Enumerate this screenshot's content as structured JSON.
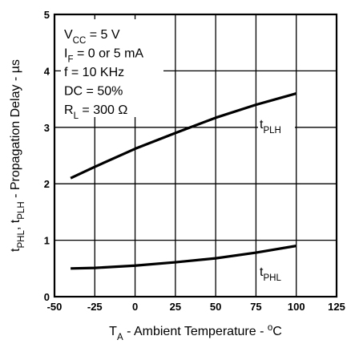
{
  "chart_data": {
    "type": "line",
    "xlabel": [
      [
        "T",
        "normal"
      ],
      [
        "A",
        "sub"
      ],
      [
        " - Ambient Temperature - ",
        "normal"
      ],
      [
        "o",
        "sup"
      ],
      [
        "C",
        "normal"
      ]
    ],
    "ylabel": [
      [
        "t",
        "normal"
      ],
      [
        "PHL",
        "sub"
      ],
      [
        ", t",
        "normal"
      ],
      [
        "PLH",
        "sub"
      ],
      [
        " - Propagation Delay - µs",
        "normal"
      ]
    ],
    "annotations": [
      [
        [
          "V",
          "normal"
        ],
        [
          "CC",
          "sub"
        ],
        [
          " = 5 V",
          "normal"
        ]
      ],
      [
        [
          "I",
          "normal"
        ],
        [
          "F",
          "sub"
        ],
        [
          " = 0 or 5 mA",
          "normal"
        ]
      ],
      [
        [
          "f = 10 KHz",
          "normal"
        ]
      ],
      [
        [
          "DC = 50%",
          "normal"
        ]
      ],
      [
        [
          "R",
          "normal"
        ],
        [
          "L",
          "sub"
        ],
        [
          " = 300 Ω",
          "normal"
        ]
      ]
    ],
    "x": [
      -40,
      -25,
      0,
      25,
      50,
      75,
      100
    ],
    "series": [
      {
        "name": [
          [
            "t",
            "normal"
          ],
          [
            "PLH",
            "sub"
          ]
        ],
        "color": "#000000",
        "values": [
          2.1,
          2.3,
          2.62,
          2.9,
          3.17,
          3.4,
          3.6
        ]
      },
      {
        "name": [
          [
            "t",
            "normal"
          ],
          [
            "PHL",
            "sub"
          ]
        ],
        "color": "#000000",
        "values": [
          0.5,
          0.51,
          0.55,
          0.61,
          0.68,
          0.78,
          0.9
        ]
      }
    ],
    "xlim": [
      -50,
      125
    ],
    "xticks": [
      -50,
      -25,
      0,
      25,
      50,
      75,
      100,
      125
    ],
    "ylim": [
      0,
      5
    ],
    "yticks": [
      0,
      1,
      2,
      3,
      4,
      5
    ],
    "grid": true
  }
}
